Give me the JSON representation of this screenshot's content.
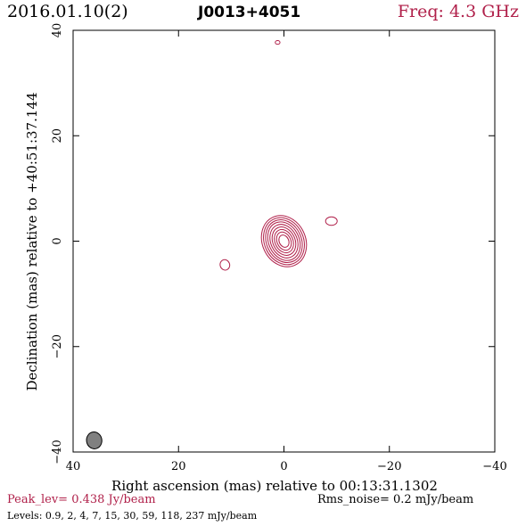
{
  "header": {
    "date": "2016.01.10(2)",
    "source": "J0013+4051",
    "freq": "Freq: 4.3 GHz"
  },
  "footer": {
    "peak": "Peak_lev=  0.438 Jy/beam",
    "rms": "Rms_noise=  0.2 mJy/beam",
    "levels": "Levels: 0.9,   2,   4,   7,  15,  30,  59, 118, 237 mJy/beam"
  },
  "colors": {
    "contour": "#b0204a",
    "beam": "#808080",
    "axis": "#000000"
  },
  "chart_data": {
    "type": "contour",
    "title": "J0013+4051",
    "xlabel": "Right ascension (mas) relative to 00:13:31.1302",
    "ylabel": "Declination (mas) relative to +40:51:37.144",
    "xlim": [
      40,
      -40
    ],
    "ylim": [
      -40,
      40
    ],
    "xticks": [
      40,
      20,
      0,
      -20,
      -40
    ],
    "yticks": [
      -40,
      -20,
      0,
      20,
      40
    ],
    "xtick_labels": [
      "40",
      "20",
      "0",
      "−20",
      "−40"
    ],
    "ytick_labels": [
      "−40",
      "−20",
      "0",
      "20",
      "40"
    ],
    "levels_mJy": [
      0.9,
      2,
      4,
      7,
      15,
      30,
      59,
      118,
      237
    ],
    "main_component": {
      "x": 0,
      "y": 0,
      "angle_deg": -25,
      "contours": [
        {
          "a": 4.1,
          "b": 5.0
        },
        {
          "a": 3.7,
          "b": 4.6
        },
        {
          "a": 3.3,
          "b": 4.2
        },
        {
          "a": 2.9,
          "b": 3.8
        },
        {
          "a": 2.5,
          "b": 3.3
        },
        {
          "a": 2.1,
          "b": 2.8
        },
        {
          "a": 1.7,
          "b": 2.3
        },
        {
          "a": 1.3,
          "b": 1.8
        },
        {
          "a": 0.9,
          "b": 1.2
        }
      ]
    },
    "minor_components": [
      {
        "x": 11.2,
        "y": -4.5,
        "a": 0.9,
        "b": 1.0,
        "angle_deg": -20
      },
      {
        "x": -9.0,
        "y": 3.8,
        "a": 1.1,
        "b": 0.8,
        "angle_deg": 0
      },
      {
        "x": 1.2,
        "y": 37.7,
        "a": 0.45,
        "b": 0.35,
        "angle_deg": 0
      }
    ],
    "beam": {
      "x": 36,
      "y": -37.8,
      "a": 1.45,
      "b": 1.6,
      "angle_deg": -10
    }
  }
}
